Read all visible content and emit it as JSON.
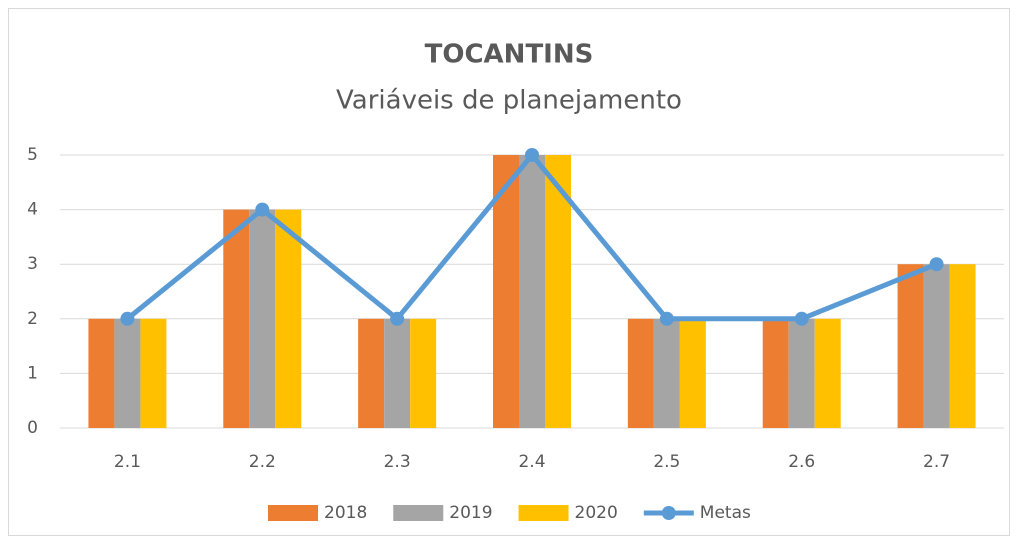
{
  "chart_data": {
    "type": "bar",
    "title": "TOCANTINS",
    "subtitle": "Variáveis de planejamento",
    "categories": [
      "2.1",
      "2.2",
      "2.3",
      "2.4",
      "2.5",
      "2.6",
      "2.7"
    ],
    "series": [
      {
        "name": "2018",
        "color": "#ed7d31",
        "values": [
          2,
          4,
          2,
          5,
          2,
          2,
          3
        ]
      },
      {
        "name": "2019",
        "color": "#a5a5a5",
        "values": [
          2,
          4,
          2,
          5,
          2,
          2,
          3
        ]
      },
      {
        "name": "2020",
        "color": "#ffc000",
        "values": [
          2,
          4,
          2,
          5,
          2,
          2,
          3
        ]
      },
      {
        "name": "Metas",
        "color": "#5b9bd5",
        "type": "line",
        "values": [
          2,
          4,
          2,
          5,
          2,
          2,
          3
        ]
      }
    ],
    "ylim": [
      0,
      5
    ],
    "yticks": [
      0,
      1,
      2,
      3,
      4,
      5
    ],
    "grid": true,
    "legend": "bottom"
  }
}
